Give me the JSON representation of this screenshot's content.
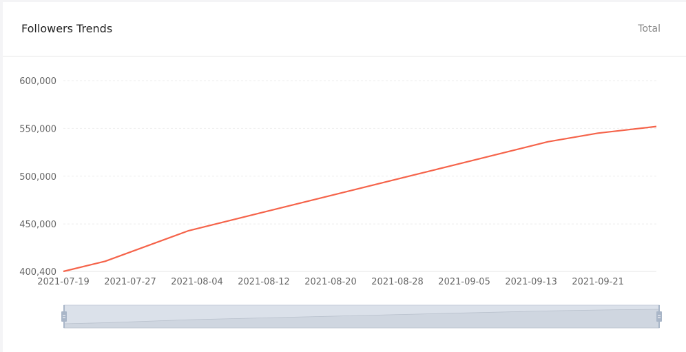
{
  "header": {
    "title": "Followers Trends",
    "total_label": "Total"
  },
  "chart_data": {
    "type": "line",
    "title": "Followers Trends",
    "x_ticks": [
      "2021-07-19",
      "2021-07-27",
      "2021-08-04",
      "2021-08-12",
      "2021-08-20",
      "2021-08-28",
      "2021-09-05",
      "2021-09-13",
      "2021-09-21"
    ],
    "y_ticks": [
      400400,
      450000,
      500000,
      550000,
      600000
    ],
    "y_tick_labels": [
      "400,400",
      "450,000",
      "500,000",
      "550,000",
      "600,000"
    ],
    "xlim": [
      "2021-07-19",
      "2021-09-28"
    ],
    "ylim": [
      400400,
      600000
    ],
    "grid": true,
    "series": [
      {
        "color": "#f5634a",
        "points": [
          [
            "2021-07-19",
            400400
          ],
          [
            "2021-07-24",
            411000
          ],
          [
            "2021-08-03",
            443000
          ],
          [
            "2021-09-03",
            510000
          ],
          [
            "2021-09-15",
            536000
          ],
          [
            "2021-09-21",
            545000
          ],
          [
            "2021-09-28",
            552000
          ]
        ]
      }
    ],
    "data_zoom": {
      "start_percent": 0,
      "end_percent": 100
    }
  }
}
